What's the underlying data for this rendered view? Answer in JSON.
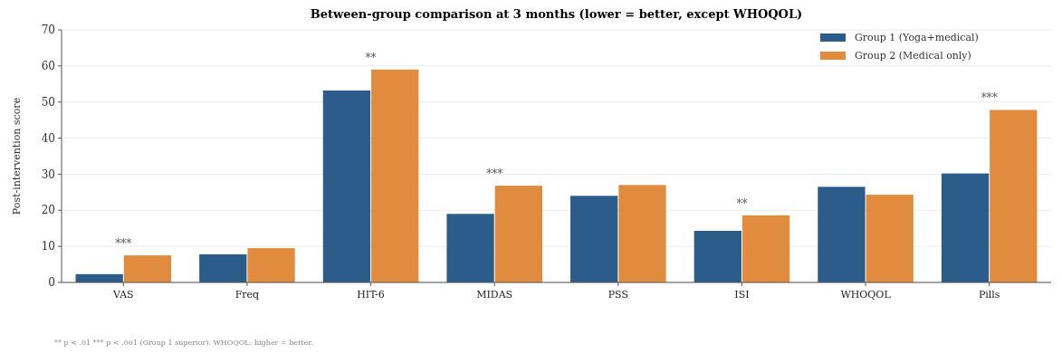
{
  "chart_data": {
    "type": "bar",
    "title": "Between-group comparison at 3 months (lower = better, except WHOQOL)",
    "ylabel": "Post-intervention score",
    "categories": [
      "VAS",
      "Freq",
      "HIT-6",
      "MIDAS",
      "PSS",
      "ISI",
      "WHOQOL",
      "Pills"
    ],
    "series": [
      {
        "name": "Group 1 (Yoga+medical)",
        "color": "#2b5c8a",
        "values": [
          2.3,
          7.8,
          53.2,
          19,
          24,
          14.3,
          26.5,
          30.2
        ]
      },
      {
        "name": "Group 2 (Medical only)",
        "color": "#e08b3d",
        "values": [
          7.5,
          9.5,
          59,
          26.8,
          27,
          18.6,
          24.3,
          47.8
        ]
      }
    ],
    "ylim": [
      0,
      70
    ],
    "yticks": [
      0,
      10,
      20,
      30,
      40,
      50,
      60,
      70
    ],
    "grid": "y",
    "legend": "top right",
    "annotations": [
      {
        "text": "***",
        "x": "VAS",
        "y": 7.5
      },
      {
        "text": "**",
        "x": "HIT-6",
        "y": 59
      },
      {
        "text": "***",
        "x": "MIDAS",
        "y": 26.8
      },
      {
        "text": "**",
        "x": "ISI",
        "y": 18.6
      },
      {
        "text": "***",
        "x": "Pills",
        "y": 47.8
      },
      "** p < .01   *** p < .001 (Group 1 superior).  WHOQOL: higher = better."
    ]
  }
}
